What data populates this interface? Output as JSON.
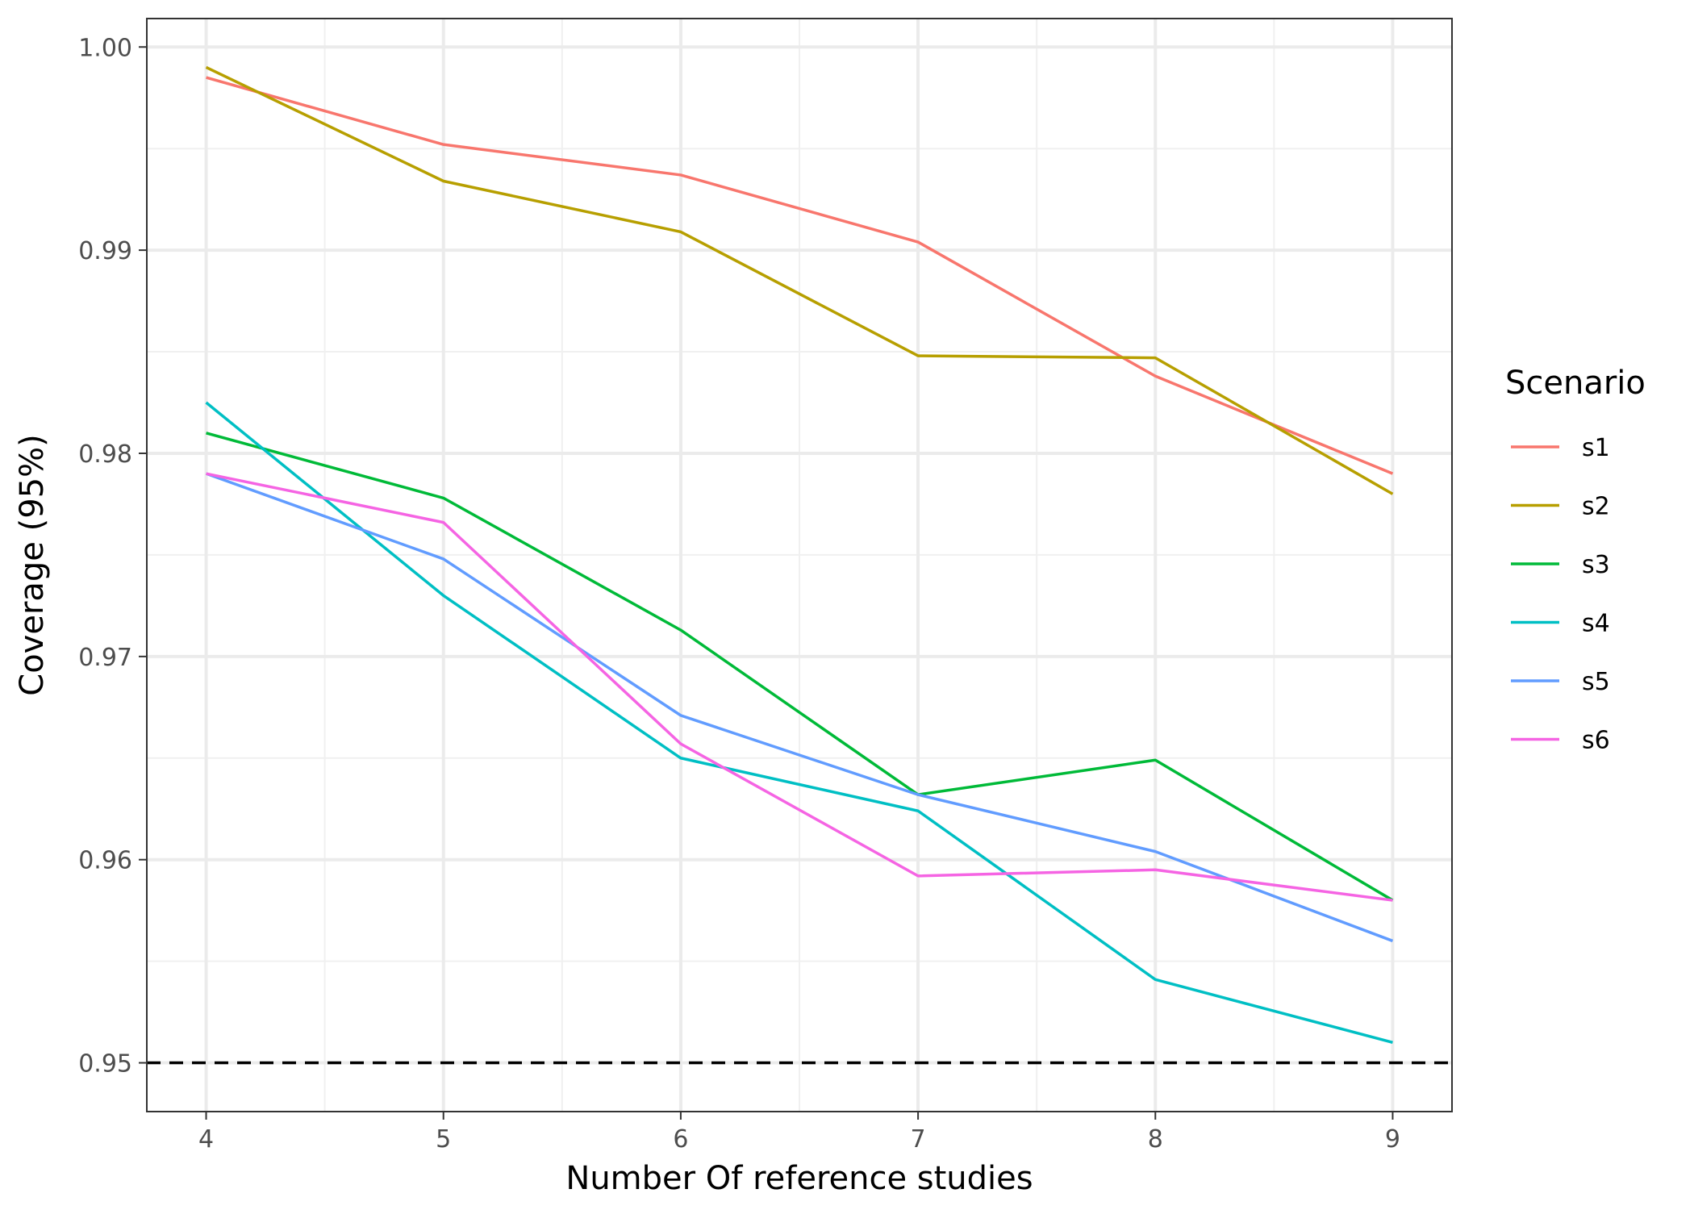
{
  "chart_data": {
    "type": "line",
    "xlabel": "Number Of reference studies",
    "ylabel": "Coverage (95%)",
    "x": [
      4,
      5,
      6,
      7,
      8,
      9
    ],
    "x_tick_labels": [
      "4",
      "5",
      "6",
      "7",
      "8",
      "9"
    ],
    "y_tick_values": [
      0.95,
      0.96,
      0.97,
      0.98,
      0.99,
      1.0
    ],
    "y_tick_labels": [
      "0.95",
      "0.96",
      "0.97",
      "0.98",
      "0.99",
      "1.00"
    ],
    "xlim": [
      3.75,
      9.25
    ],
    "ylim": [
      0.9476,
      1.0014
    ],
    "grid": true,
    "legend": {
      "title": "Scenario",
      "position": "right"
    },
    "reference_line": {
      "y": 0.95,
      "style": "dashed",
      "color": "#000000"
    },
    "series": [
      {
        "name": "s1",
        "color": "#F8766D",
        "values": [
          0.9985,
          0.9952,
          0.9937,
          0.9904,
          0.9838,
          0.979
        ]
      },
      {
        "name": "s2",
        "color": "#B79F00",
        "values": [
          0.999,
          0.9934,
          0.9909,
          0.9848,
          0.9847,
          0.978
        ]
      },
      {
        "name": "s3",
        "color": "#00BA38",
        "values": [
          0.981,
          0.9778,
          0.9713,
          0.9632,
          0.9649,
          0.958
        ]
      },
      {
        "name": "s4",
        "color": "#00BFC4",
        "values": [
          0.9825,
          0.973,
          0.965,
          0.9624,
          0.9541,
          0.951
        ]
      },
      {
        "name": "s5",
        "color": "#619CFF",
        "values": [
          0.979,
          0.9748,
          0.9671,
          0.9632,
          0.9604,
          0.956
        ]
      },
      {
        "name": "s6",
        "color": "#F564E3",
        "values": [
          0.979,
          0.9766,
          0.9657,
          0.9592,
          0.9595,
          0.958
        ]
      }
    ]
  }
}
